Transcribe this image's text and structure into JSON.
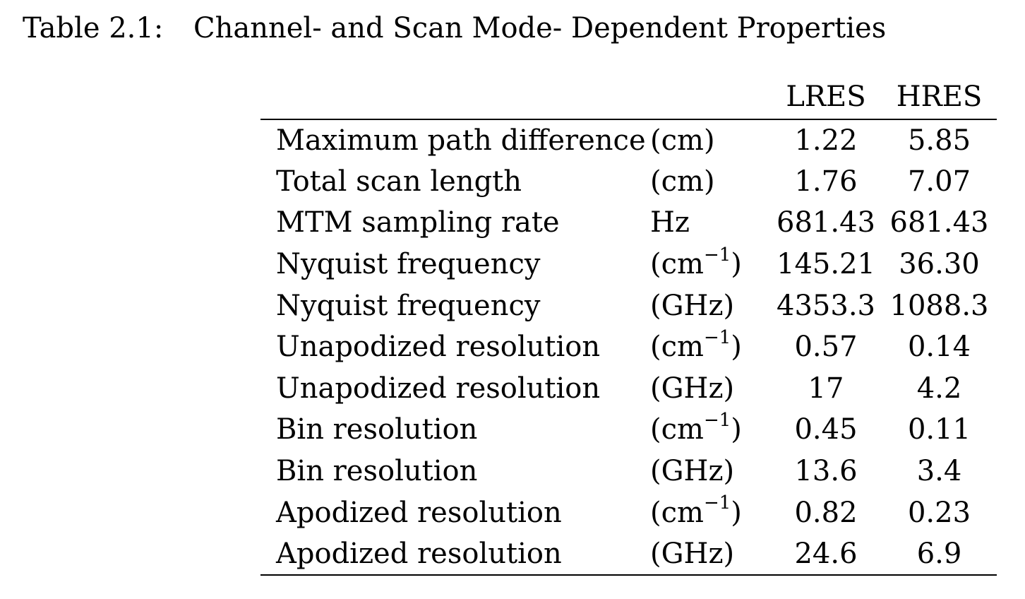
{
  "caption": {
    "label": "Table 2.1:",
    "title": "Channel- and Scan Mode- Dependent Properties"
  },
  "table": {
    "columns": [
      "",
      "",
      "LRES",
      "HRES"
    ],
    "rows": [
      {
        "property": "Maximum path difference",
        "unit": "(cm)",
        "unit_sup": "",
        "unit_close": "",
        "lres": "1.22",
        "hres": "5.85"
      },
      {
        "property": "Total scan length",
        "unit": "(cm)",
        "unit_sup": "",
        "unit_close": "",
        "lres": "1.76",
        "hres": "7.07"
      },
      {
        "property": "MTM sampling rate",
        "unit": "Hz",
        "unit_sup": "",
        "unit_close": "",
        "lres": "681.43",
        "hres": "681.43"
      },
      {
        "property": "Nyquist frequency",
        "unit": "(cm",
        "unit_sup": "−1",
        "unit_close": ")",
        "lres": "145.21",
        "hres": "36.30"
      },
      {
        "property": "Nyquist frequency",
        "unit": "(GHz)",
        "unit_sup": "",
        "unit_close": "",
        "lres": "4353.3",
        "hres": "1088.3"
      },
      {
        "property": "Unapodized resolution",
        "unit": "(cm",
        "unit_sup": "−1",
        "unit_close": ")",
        "lres": "0.57",
        "hres": "0.14"
      },
      {
        "property": "Unapodized resolution",
        "unit": "(GHz)",
        "unit_sup": "",
        "unit_close": "",
        "lres": "17",
        "hres": "4.2"
      },
      {
        "property": "Bin resolution",
        "unit": "(cm",
        "unit_sup": "−1",
        "unit_close": ")",
        "lres": "0.45",
        "hres": "0.11"
      },
      {
        "property": "Bin resolution",
        "unit": "(GHz)",
        "unit_sup": "",
        "unit_close": "",
        "lres": "13.6",
        "hres": "3.4"
      },
      {
        "property": "Apodized resolution",
        "unit": "(cm",
        "unit_sup": "−1",
        "unit_close": ")",
        "lres": "0.82",
        "hres": "0.23"
      },
      {
        "property": "Apodized resolution",
        "unit": "(GHz)",
        "unit_sup": "",
        "unit_close": "",
        "lres": "24.6",
        "hres": "6.9"
      }
    ]
  }
}
